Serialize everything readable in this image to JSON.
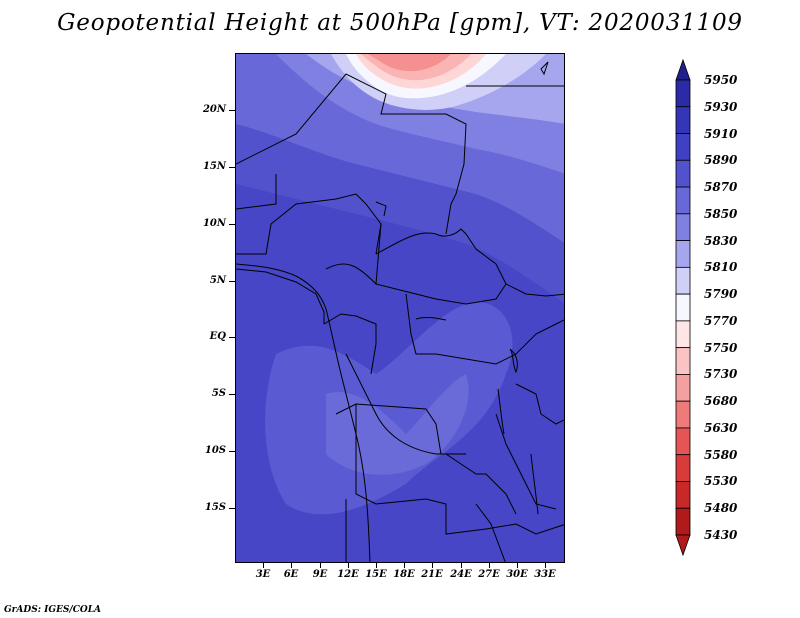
{
  "title": "Geopotential Height at 500hPa [gpm], VT: 2020031109",
  "credit": "GrADS: IGES/COLA",
  "map": {
    "lon_range": [
      0,
      35
    ],
    "lat_range": [
      -20,
      25
    ],
    "y_ticks": [
      "20N",
      "15N",
      "10N",
      "5N",
      "EQ",
      "5S",
      "10S",
      "15S"
    ],
    "x_ticks": [
      "3E",
      "6E",
      "9E",
      "12E",
      "15E",
      "18E",
      "21E",
      "24E",
      "27E",
      "30E",
      "33E"
    ]
  },
  "colorbar": {
    "levels": [
      "5950",
      "5930",
      "5910",
      "5890",
      "5870",
      "5850",
      "5830",
      "5810",
      "5790",
      "5770",
      "5750",
      "5730",
      "5680",
      "5630",
      "5580",
      "5530",
      "5480",
      "5430"
    ],
    "colors_top_to_bottom": [
      "#20208c",
      "#2b2ba8",
      "#3535b8",
      "#4040c4",
      "#5252cc",
      "#6868d8",
      "#8080e2",
      "#a6a6ee",
      "#cfcff7",
      "#f7f7ff",
      "#ffe6e6",
      "#fbc4c4",
      "#f5a0a0",
      "#ee7a7a",
      "#e55555",
      "#d93a3a",
      "#c82828",
      "#b01a1a"
    ]
  }
}
